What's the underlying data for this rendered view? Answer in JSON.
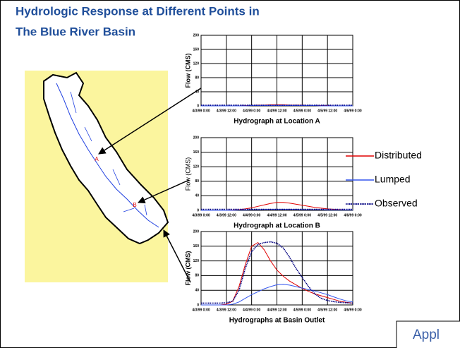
{
  "slide": {
    "title_lines": [
      "Hydrologic Response at Different Points in",
      "The Blue River Basin"
    ],
    "map_labels": [
      "A",
      "B"
    ],
    "footer_text": "Appl"
  },
  "chart_data": [
    {
      "type": "line",
      "title": "Hydrograph at Location A",
      "ylabel": "Flow (CMS)",
      "ylabel_bold": true,
      "x": [
        0,
        3,
        6,
        9,
        12,
        15,
        18,
        21,
        24,
        27,
        30,
        33,
        36,
        39,
        42,
        45,
        48,
        51,
        54,
        57,
        60,
        63,
        66,
        69,
        72
      ],
      "xlim": [
        0,
        72
      ],
      "ylim": [
        0,
        200
      ],
      "yticks": [
        0,
        40,
        80,
        120,
        160,
        200
      ],
      "grid": true,
      "xticks": [
        {
          "value": 0,
          "label": "4/3/99 0:00"
        },
        {
          "value": 12,
          "label": "4/3/99 12:00"
        },
        {
          "value": 24,
          "label": "4/4/99 0:00"
        },
        {
          "value": 36,
          "label": "4/4/99 12:00"
        },
        {
          "value": 48,
          "label": "4/5/99 0:00"
        },
        {
          "value": 60,
          "label": "4/5/99 12:00"
        },
        {
          "value": 72,
          "label": "4/6/99 0:00"
        }
      ],
      "series": [
        {
          "name": "Distributed",
          "color": "#e00000",
          "values": [
            0,
            0,
            0,
            0,
            0,
            0,
            0,
            1,
            1,
            2,
            2,
            3,
            3,
            3,
            2,
            2,
            2,
            1,
            1,
            1,
            1,
            0,
            0,
            0,
            0
          ]
        },
        {
          "name": "Lumped",
          "color": "#3355ee",
          "values": [
            0,
            0,
            0,
            0,
            0,
            0,
            0,
            0,
            1,
            1,
            1,
            1,
            1,
            1,
            1,
            1,
            1,
            1,
            1,
            0,
            0,
            0,
            0,
            0,
            0
          ]
        },
        {
          "name": "Observed",
          "color": "#000080",
          "dotted": true,
          "values": [
            2,
            2,
            2,
            2,
            2,
            2,
            2,
            2,
            2,
            2,
            2,
            2,
            2,
            2,
            2,
            2,
            2,
            2,
            2,
            2,
            2,
            2,
            2,
            2,
            2
          ]
        }
      ]
    },
    {
      "type": "line",
      "title": "Hydrograph at Location B",
      "ylabel": "Flow (CMS)",
      "ylabel_bold": false,
      "x": [
        0,
        3,
        6,
        9,
        12,
        15,
        18,
        21,
        24,
        27,
        30,
        33,
        36,
        39,
        42,
        45,
        48,
        51,
        54,
        57,
        60,
        63,
        66,
        69,
        72
      ],
      "xlim": [
        0,
        72
      ],
      "ylim": [
        0,
        200
      ],
      "yticks": [
        0,
        40,
        80,
        120,
        160,
        200
      ],
      "grid": true,
      "xticks": [
        {
          "value": 0,
          "label": "4/3/99 0:00"
        },
        {
          "value": 12,
          "label": "4/3/99 12:00"
        },
        {
          "value": 24,
          "label": "4/4/99 0:00"
        },
        {
          "value": 36,
          "label": "4/4/99 12:00"
        },
        {
          "value": 48,
          "label": "4/5/99 0:00"
        },
        {
          "value": 60,
          "label": "4/5/99 12:00"
        },
        {
          "value": 72,
          "label": "4/6/99 0:00"
        }
      ],
      "series": [
        {
          "name": "Distributed",
          "color": "#e00000",
          "values": [
            0,
            0,
            0,
            0,
            0,
            1,
            2,
            4,
            7,
            11,
            15,
            19,
            22,
            22,
            20,
            17,
            14,
            11,
            8,
            6,
            4,
            3,
            2,
            1,
            1
          ]
        },
        {
          "name": "Lumped",
          "color": "#3355ee",
          "values": [
            0,
            0,
            0,
            0,
            0,
            0,
            1,
            1,
            2,
            2,
            3,
            3,
            3,
            3,
            3,
            3,
            2,
            2,
            2,
            2,
            1,
            1,
            1,
            1,
            1
          ]
        },
        {
          "name": "Observed",
          "color": "#000080",
          "dotted": true,
          "values": [
            3,
            3,
            3,
            3,
            3,
            3,
            3,
            3,
            3,
            3,
            3,
            3,
            3,
            3,
            3,
            3,
            3,
            3,
            3,
            3,
            3,
            3,
            3,
            3,
            3
          ]
        }
      ]
    },
    {
      "type": "line",
      "title": "Hydrographs at Basin Outlet",
      "ylabel": "Flow (CMS)",
      "ylabel_bold": true,
      "x": [
        0,
        3,
        6,
        9,
        12,
        15,
        18,
        21,
        24,
        27,
        30,
        33,
        36,
        39,
        42,
        45,
        48,
        51,
        54,
        57,
        60,
        63,
        66,
        69,
        72
      ],
      "xlim": [
        0,
        72
      ],
      "ylim": [
        0,
        200
      ],
      "yticks": [
        0,
        40,
        80,
        120,
        160,
        200
      ],
      "grid": true,
      "xticks": [
        {
          "value": 0,
          "label": "4/3/99 0:00"
        },
        {
          "value": 12,
          "label": "4/3/99 12:00"
        },
        {
          "value": 24,
          "label": "4/4/99 0:00"
        },
        {
          "value": 36,
          "label": "4/4/99 12:00"
        },
        {
          "value": 48,
          "label": "4/5/99 0:00"
        },
        {
          "value": 60,
          "label": "4/5/99 12:00"
        },
        {
          "value": 72,
          "label": "4/6/99 0:00"
        }
      ],
      "series": [
        {
          "name": "Distributed",
          "color": "#e00000",
          "values": [
            0,
            0,
            0,
            0,
            2,
            10,
            50,
            110,
            160,
            170,
            150,
            120,
            95,
            78,
            65,
            55,
            45,
            37,
            30,
            25,
            20,
            15,
            10,
            7,
            5
          ]
        },
        {
          "name": "Lumped",
          "color": "#3355ee",
          "values": [
            0,
            0,
            0,
            0,
            0,
            2,
            8,
            18,
            28,
            36,
            44,
            50,
            55,
            56,
            54,
            50,
            46,
            42,
            38,
            33,
            28,
            22,
            16,
            11,
            8
          ]
        },
        {
          "name": "Observed",
          "color": "#000080",
          "dotted": true,
          "values": [
            5,
            5,
            5,
            5,
            6,
            10,
            40,
            100,
            145,
            165,
            170,
            172,
            168,
            155,
            130,
            100,
            75,
            50,
            30,
            18,
            12,
            9,
            7,
            6,
            5
          ]
        }
      ]
    }
  ]
}
